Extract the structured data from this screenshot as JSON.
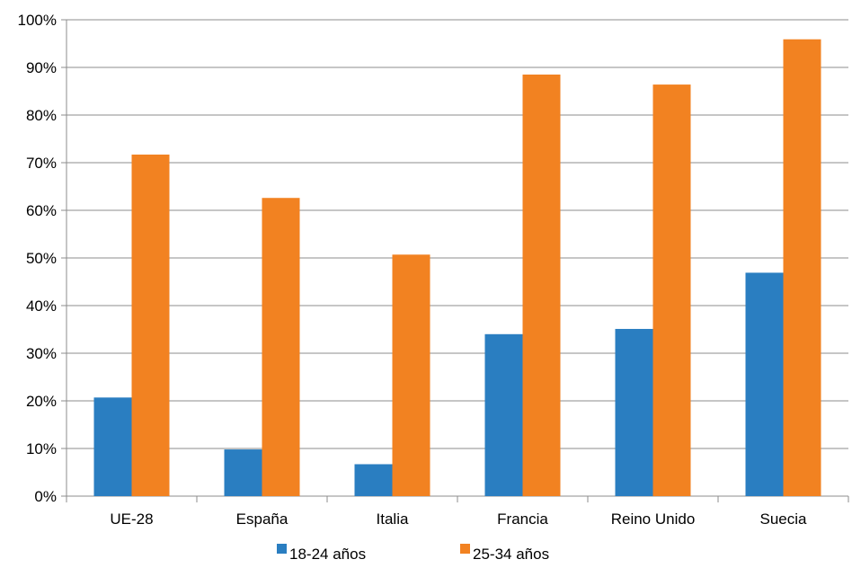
{
  "chart_data": {
    "type": "bar",
    "title": "",
    "xlabel": "",
    "ylabel": "",
    "categories": [
      "UE-28",
      "España",
      "Italia",
      "Francia",
      "Reino Unido",
      "Suecia"
    ],
    "series": [
      {
        "name": "18-24 años",
        "color": "#2a7ec1",
        "values": [
          20.7,
          9.8,
          6.7,
          34.0,
          35.1,
          46.9
        ]
      },
      {
        "name": "25-34 años",
        "color": "#f28221",
        "values": [
          71.7,
          62.6,
          50.7,
          88.5,
          86.4,
          95.9
        ]
      }
    ],
    "ylim": [
      0,
      100
    ],
    "yticks": [
      0,
      10,
      20,
      30,
      40,
      50,
      60,
      70,
      80,
      90,
      100
    ],
    "ytick_labels": [
      "0%",
      "10%",
      "20%",
      "30%",
      "40%",
      "50%",
      "60%",
      "70%",
      "80%",
      "90%",
      "100%"
    ],
    "grid": true,
    "legend_position": "bottom"
  }
}
